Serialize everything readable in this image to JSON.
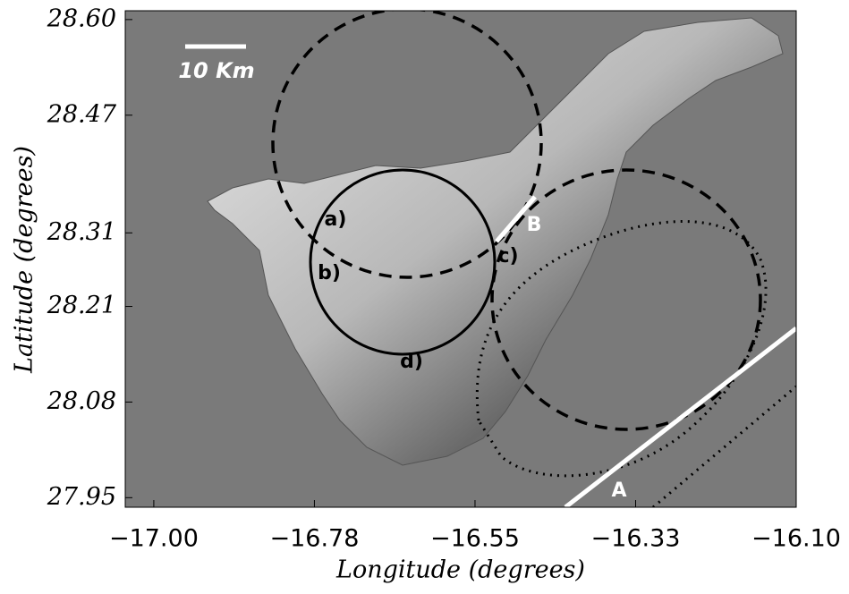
{
  "chart_data": {
    "type": "map",
    "xlabel": "Longitude (degrees)",
    "ylabel": "Latitude (degrees)",
    "xlim": [
      -17.04,
      -16.1
    ],
    "xticks": [
      {
        "value": -17.0,
        "label": "−17.00"
      },
      {
        "value": -16.775,
        "label": "−16.78"
      },
      {
        "value": -16.55,
        "label": "−16.55"
      },
      {
        "value": -16.325,
        "label": "−16.33"
      },
      {
        "value": -16.1,
        "label": "−16.10"
      }
    ],
    "ylim": [
      27.937,
      28.612
    ],
    "yticks": [
      {
        "value": 27.95,
        "label": "27.95"
      },
      {
        "value": 28.08,
        "label": "28.08"
      },
      {
        "value": 28.21,
        "label": "28.21"
      },
      {
        "value": 28.31,
        "label": "28.31"
      },
      {
        "value": 28.47,
        "label": "28.47"
      },
      {
        "value": 28.6,
        "label": "28.60"
      }
    ],
    "annotations": [
      "10 Km",
      "a)",
      "b)",
      "c)",
      "d)",
      "A",
      "B"
    ]
  }
}
